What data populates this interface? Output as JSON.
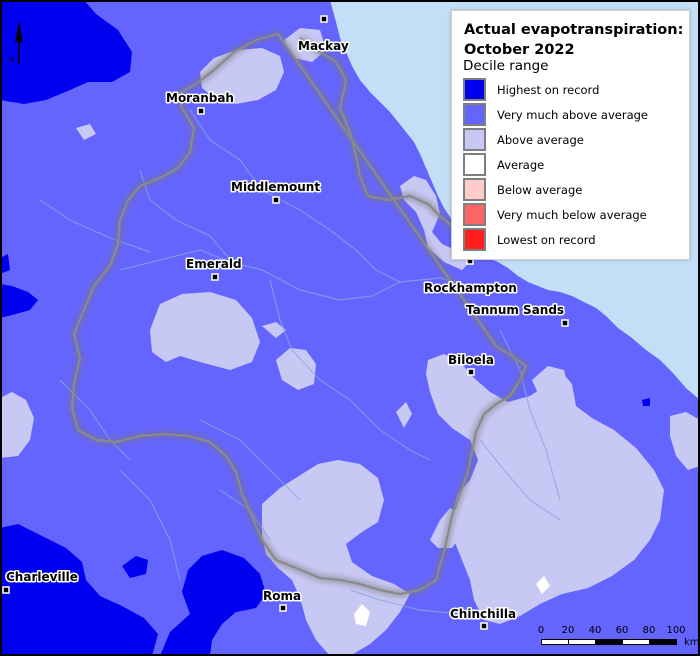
{
  "legend": {
    "title": "Actual evapotranspiration: October 2022",
    "subtitle": "Decile range",
    "items": [
      {
        "label": "Highest on record",
        "color": "#0000f0"
      },
      {
        "label": "Very much above average",
        "color": "#6464ff"
      },
      {
        "label": "Above average",
        "color": "#c8c8f4"
      },
      {
        "label": "Average",
        "color": "#ffffff"
      },
      {
        "label": "Below average",
        "color": "#ffcccc"
      },
      {
        "label": "Very much below average",
        "color": "#ff6464"
      },
      {
        "label": "Lowest on record",
        "color": "#ff1e1e"
      }
    ]
  },
  "towns": {
    "mackay": "Mackay",
    "moranbah": "Moranbah",
    "middlemount": "Middlemount",
    "emerald": "Emerald",
    "rockhampton": "Rockhampton",
    "tannum_sands": "Tannum Sands",
    "biloela": "Biloela",
    "charleville": "Charleville",
    "roma": "Roma",
    "chinchilla": "Chinchilla"
  },
  "scale_bar": {
    "ticks": [
      "0",
      "20",
      "40",
      "60",
      "80",
      "100"
    ],
    "unit": "km"
  },
  "colors": {
    "ocean": "#c3dff7",
    "border_outline": "#000000",
    "basin_boundary": "#8a8a8a",
    "rivers": "#86a8dd"
  }
}
